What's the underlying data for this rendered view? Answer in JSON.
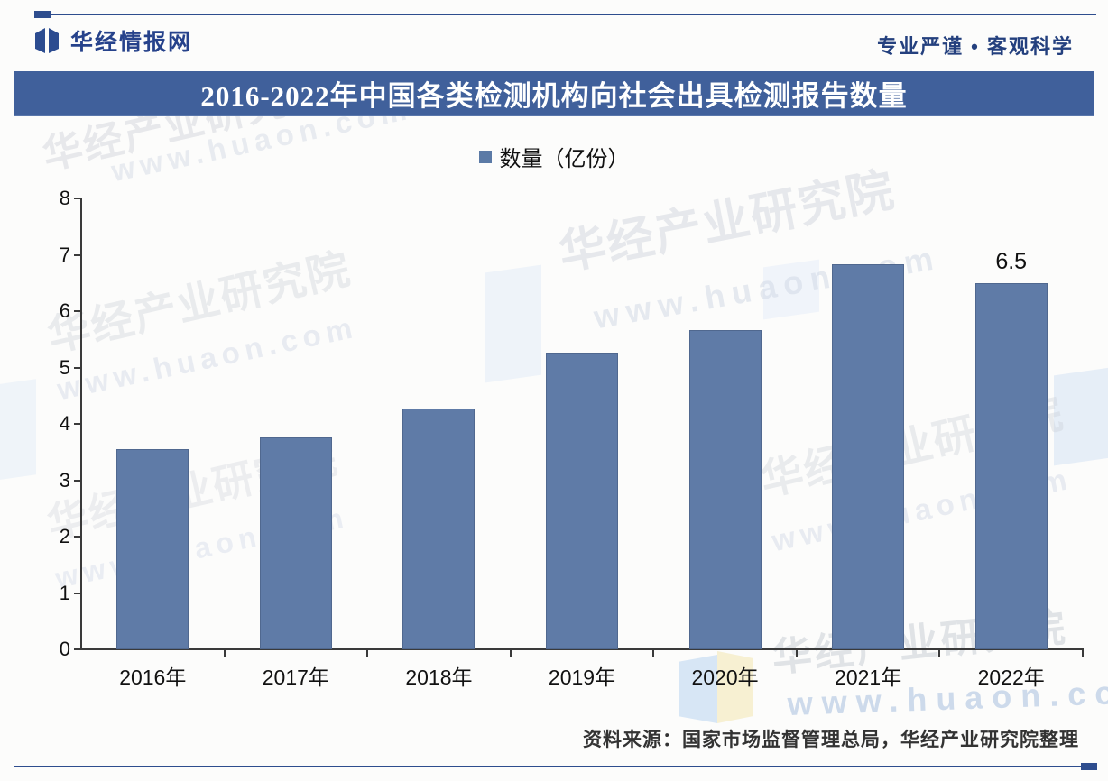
{
  "header": {
    "brand": "华经情报网",
    "slogan": "专业严谨 • 客观科学"
  },
  "title": "2016-2022年中国各类检测机构向社会出具检测报告数量",
  "legend": {
    "label": "数量（亿份）",
    "marker_color": "#5b7aa6"
  },
  "chart_data": {
    "type": "bar",
    "title": "2016-2022年中国各类检测机构向社会出具检测报告数量",
    "categories": [
      "2016年",
      "2017年",
      "2018年",
      "2019年",
      "2020年",
      "2021年",
      "2022年"
    ],
    "series": [
      {
        "name": "数量（亿份）",
        "values": [
          3.56,
          3.76,
          4.28,
          5.27,
          5.67,
          6.84,
          6.5
        ]
      }
    ],
    "value_labels": [
      "",
      "",
      "",
      "",
      "",
      "",
      "6.5"
    ],
    "xlabel": "",
    "ylabel": "",
    "ylim": [
      0,
      8
    ],
    "yticks": [
      0,
      1,
      2,
      3,
      4,
      5,
      6,
      7,
      8
    ],
    "grid": false,
    "legend_position": "top",
    "bar_color": "#5f7ba7"
  },
  "footer": {
    "source": "资料来源：国家市场监督管理总局，华经产业研究院整理"
  },
  "watermark": {
    "org": "华经产业研究院",
    "url": "www.huaon.com"
  },
  "colors": {
    "accent_rule": "#2e4d8e",
    "title_bar": "#40609b",
    "bar": "#5f7ba7",
    "brand_text": "#26428b"
  }
}
